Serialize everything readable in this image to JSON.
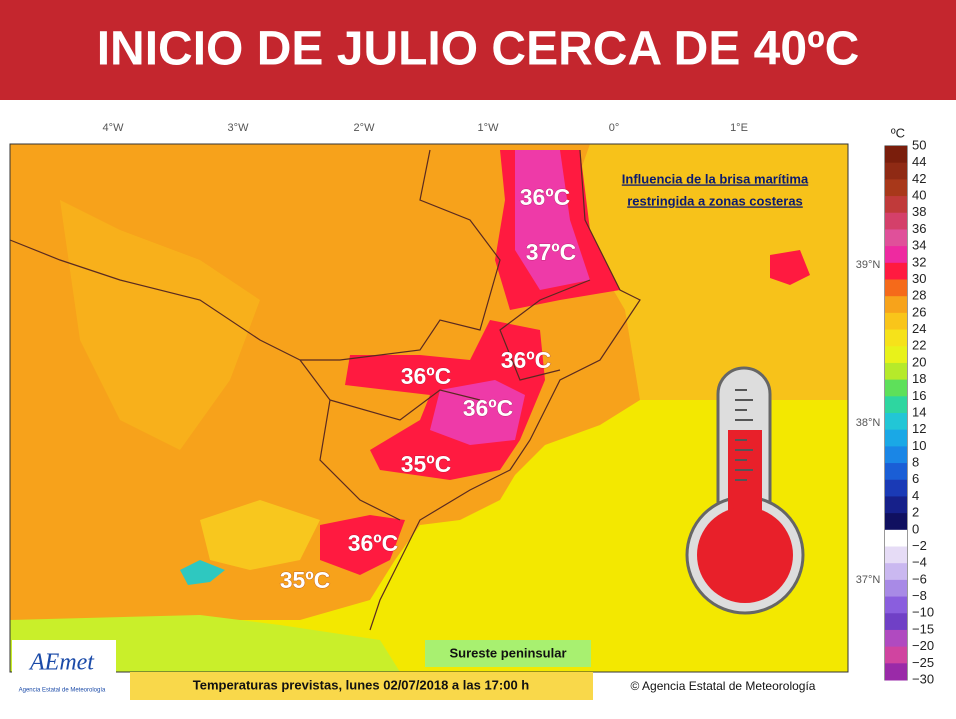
{
  "header": {
    "title": "INICIO DE JULIO CERCA DE 40ºC"
  },
  "graticule": {
    "lon": [
      "4°W",
      "3°W",
      "2°W",
      "1°W",
      "0°",
      "1°E"
    ],
    "lat": [
      "39°N",
      "38°N",
      "37°N"
    ]
  },
  "map_labels": [
    "36ºC",
    "37ºC",
    "36ºC",
    "36ºC",
    "36ºC",
    "35ºC",
    "36ºC",
    "35ºC"
  ],
  "annotation": [
    "Influencia de la brisa marítima",
    "restringida a zonas costeras"
  ],
  "colorbar": {
    "unit": "ºC",
    "labels": [
      "50",
      "44",
      "42",
      "40",
      "38",
      "36",
      "34",
      "32",
      "30",
      "28",
      "26",
      "24",
      "22",
      "20",
      "18",
      "16",
      "14",
      "12",
      "10",
      "8",
      "6",
      "4",
      "2",
      "0",
      "−2",
      "−4",
      "−6",
      "−8",
      "−10",
      "−15",
      "−20",
      "−25",
      "−30"
    ],
    "colors": [
      "#7a1e0c",
      "#8f2a14",
      "#a8381a",
      "#c03a3a",
      "#d4406a",
      "#e0509a",
      "#ee2aa0",
      "#ff1a40",
      "#f56a1a",
      "#f7a31b",
      "#f9c51a",
      "#f6e21a",
      "#e8f21a",
      "#b6ea2a",
      "#5ee05a",
      "#2ed6a0",
      "#22c6d6",
      "#1aa8e6",
      "#1a86e6",
      "#1a5ed6",
      "#1a3ab6",
      "#16208a",
      "#101060",
      "#ffffff",
      "#e6dcf6",
      "#cab8f0",
      "#a88ae6",
      "#8a5ede",
      "#7040c6",
      "#b04ac0",
      "#d044a0",
      "#9a2aa8"
    ]
  },
  "region_label": "Sureste peninsular",
  "caption": "Temperaturas previstas, lunes 02/07/2018 a las 17:00 h",
  "copyright": "© Agencia Estatal de Meteorología",
  "logo": {
    "name": "AEmet",
    "subtitle": "Agencia Estatal de Meteorología"
  }
}
